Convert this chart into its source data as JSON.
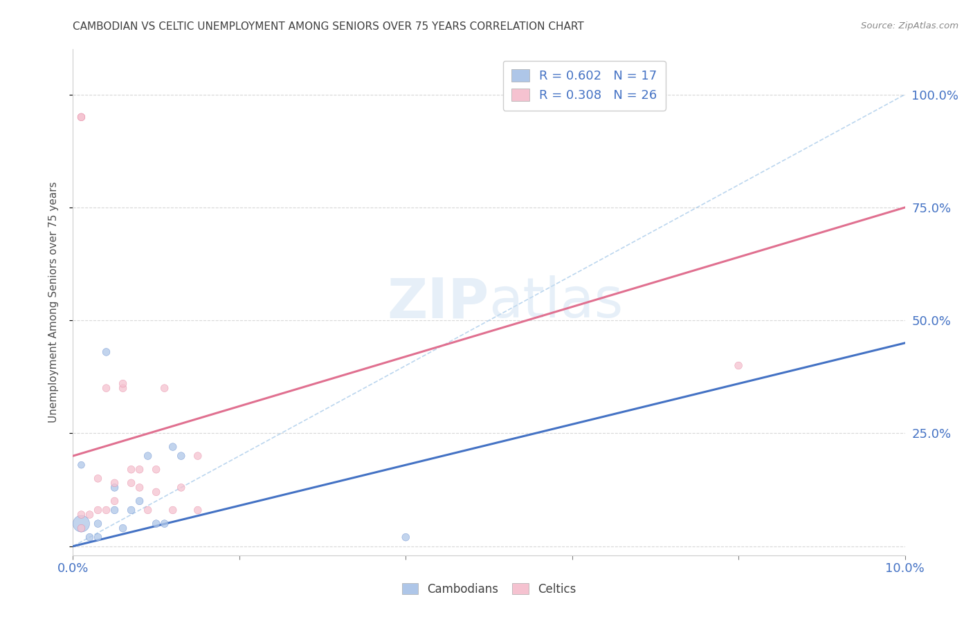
{
  "title": "CAMBODIAN VS CELTIC UNEMPLOYMENT AMONG SENIORS OVER 75 YEARS CORRELATION CHART",
  "source": "Source: ZipAtlas.com",
  "ylabel": "Unemployment Among Seniors over 75 years",
  "xlim": [
    0.0,
    0.1
  ],
  "ylim": [
    -0.02,
    1.1
  ],
  "xticks": [
    0.0,
    0.02,
    0.04,
    0.06,
    0.08,
    0.1
  ],
  "yticks": [
    0.0,
    0.25,
    0.5,
    0.75,
    1.0
  ],
  "ytick_labels_right": [
    "",
    "25.0%",
    "50.0%",
    "75.0%",
    "100.0%"
  ],
  "watermark": "ZIPAtlas",
  "cambodian_color": "#aec6e8",
  "celtic_color": "#f5c2d0",
  "cambodian_line_color": "#4472c4",
  "celtic_line_color": "#e07090",
  "diagonal_color": "#9fc5e8",
  "grid_color": "#d8d8d8",
  "title_color": "#404040",
  "cambodian_scatter_x": [
    0.001,
    0.001,
    0.002,
    0.003,
    0.003,
    0.004,
    0.005,
    0.005,
    0.006,
    0.007,
    0.008,
    0.009,
    0.01,
    0.011,
    0.012,
    0.013,
    0.04
  ],
  "cambodian_scatter_y": [
    0.05,
    0.18,
    0.02,
    0.02,
    0.05,
    0.43,
    0.08,
    0.13,
    0.04,
    0.08,
    0.1,
    0.2,
    0.05,
    0.05,
    0.22,
    0.2,
    0.02
  ],
  "cambodian_scatter_size": [
    300,
    50,
    60,
    60,
    60,
    60,
    60,
    60,
    60,
    60,
    60,
    60,
    60,
    60,
    60,
    60,
    60
  ],
  "celtic_scatter_x": [
    0.001,
    0.001,
    0.001,
    0.001,
    0.002,
    0.003,
    0.003,
    0.004,
    0.004,
    0.005,
    0.005,
    0.006,
    0.006,
    0.007,
    0.007,
    0.008,
    0.008,
    0.009,
    0.01,
    0.01,
    0.011,
    0.012,
    0.013,
    0.015,
    0.015,
    0.08
  ],
  "celtic_scatter_y": [
    0.04,
    0.07,
    0.95,
    0.95,
    0.07,
    0.08,
    0.15,
    0.35,
    0.08,
    0.1,
    0.14,
    0.35,
    0.36,
    0.14,
    0.17,
    0.13,
    0.17,
    0.08,
    0.12,
    0.17,
    0.35,
    0.08,
    0.13,
    0.08,
    0.2,
    0.4
  ],
  "celtic_scatter_size": [
    60,
    60,
    60,
    60,
    60,
    60,
    60,
    60,
    60,
    60,
    60,
    60,
    60,
    60,
    60,
    60,
    60,
    60,
    60,
    60,
    60,
    60,
    60,
    60,
    60,
    60
  ],
  "cambodian_line_x": [
    0.0,
    0.1
  ],
  "cambodian_line_y": [
    0.0,
    0.45
  ],
  "celtic_line_x": [
    0.0,
    0.1
  ],
  "celtic_line_y": [
    0.2,
    0.75
  ],
  "diagonal_line_x": [
    0.0,
    0.1
  ],
  "diagonal_line_y": [
    0.0,
    1.0
  ],
  "background_color": "#ffffff"
}
